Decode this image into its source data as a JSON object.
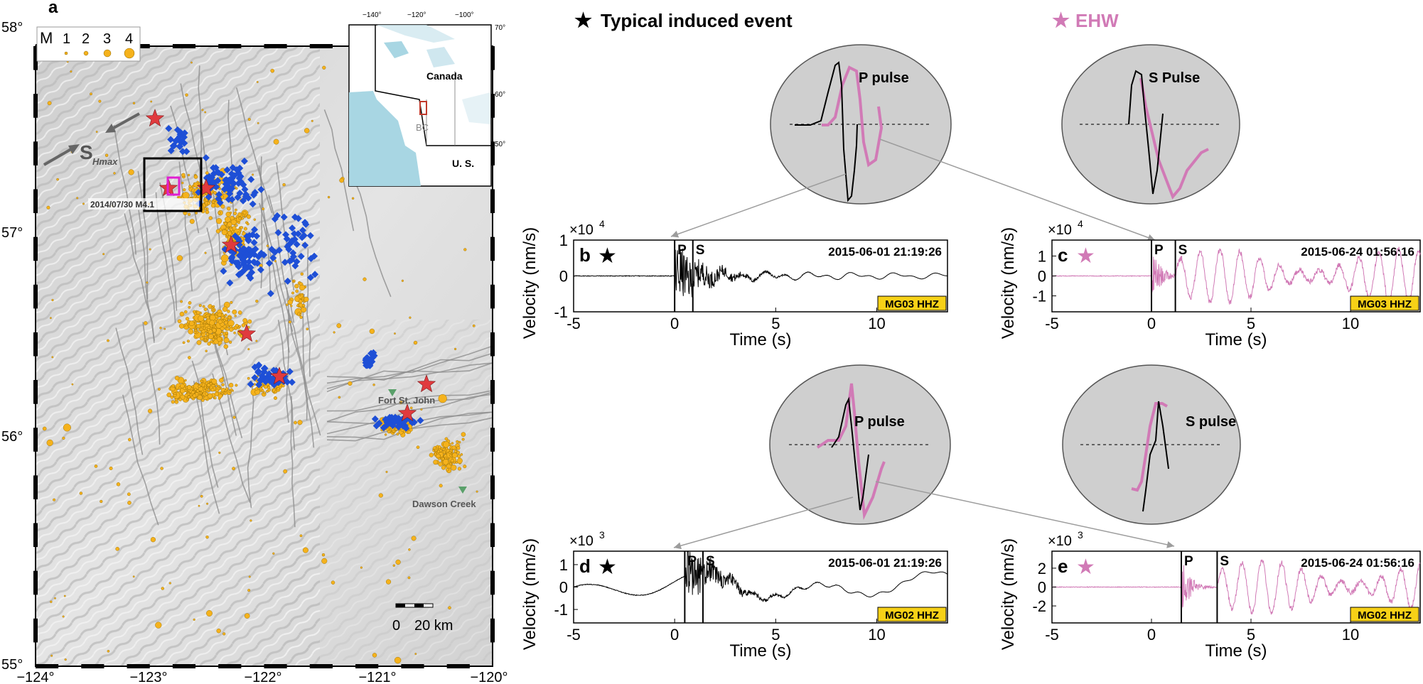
{
  "map": {
    "panel_label": "a",
    "lat_labels": [
      "58°",
      "57°",
      "56°",
      "55°"
    ],
    "lon_labels": [
      "−124°",
      "−123°",
      "−122°",
      "−121°",
      "−120°"
    ],
    "legend": {
      "title": "M",
      "values": [
        "1",
        "2",
        "3",
        "4"
      ]
    },
    "shmax_label": "S",
    "shmax_sub": "Hmax",
    "event_label": "2014/07/30 M4.1",
    "towns": [
      "Fort St. John",
      "Dawson Creek"
    ],
    "scale_bar": {
      "zero": "0",
      "dist": "20 km"
    },
    "inset": {
      "lon_labels": [
        "−140°",
        "−120°",
        "−100°"
      ],
      "lat_labels": [
        "70°",
        "60°",
        "50°"
      ],
      "country_labels": [
        "Canada",
        "U. S."
      ],
      "province_label": "BC"
    },
    "colors": {
      "seismicity": "#f5b21c",
      "cluster": "#1e4fd6",
      "star": "#e03a3e",
      "box": "#000000",
      "magenta_box": "#e01fd0",
      "water": "#a8d6e3"
    }
  },
  "legend_top": {
    "typical": {
      "star": "★",
      "label": "Typical induced event",
      "color": "#000000"
    },
    "ehw": {
      "star": "★",
      "label": "EHW",
      "color": "#d17ab6"
    }
  },
  "pulses": [
    {
      "label": "P pulse"
    },
    {
      "label": "S Pulse"
    },
    {
      "label": "P pulse"
    },
    {
      "label": "S pulse"
    }
  ],
  "chart_data": [
    {
      "type": "line",
      "panel": "b",
      "star_color": "#000000",
      "title": "2015-06-01 21:19:26",
      "station": "MG03  HHZ",
      "ylabel": "Velocity (nm/s)",
      "xlabel": "Time (s)",
      "multiplier": "×10",
      "multiplier_exp": "4",
      "xlim": [
        -5,
        13.5
      ],
      "ylim": [
        -1,
        1
      ],
      "xticks": [
        "-5",
        "0",
        "5",
        "10"
      ],
      "yticks": [
        "1",
        "0",
        "-1"
      ],
      "picks": {
        "P": 0.0,
        "S": 0.9
      },
      "series": [
        {
          "color": "#000000"
        }
      ]
    },
    {
      "type": "line",
      "panel": "c",
      "star_color": "#d17ab6",
      "title": "2015-06-24 01:56:16",
      "station": "MG03  HHZ",
      "ylabel": "Velocity (nm/s)",
      "xlabel": "Time (s)",
      "multiplier": "×10",
      "multiplier_exp": "4",
      "xlim": [
        -5,
        13.5
      ],
      "ylim": [
        -1.8,
        1.8
      ],
      "xticks": [
        "-5",
        "0",
        "5",
        "10"
      ],
      "yticks": [
        "1",
        "0",
        "-1"
      ],
      "picks": {
        "P": 0.0,
        "S": 1.2
      },
      "series": [
        {
          "color": "#d17ab6"
        }
      ]
    },
    {
      "type": "line",
      "panel": "d",
      "star_color": "#000000",
      "title": "2015-06-01 21:19:26",
      "station": "MG02  HHZ",
      "ylabel": "Velocity (nm/s)",
      "xlabel": "Time (s)",
      "multiplier": "×10",
      "multiplier_exp": "3",
      "xlim": [
        -5,
        13.5
      ],
      "ylim": [
        -1.6,
        1.6
      ],
      "xticks": [
        "-5",
        "0",
        "5",
        "10"
      ],
      "yticks": [
        "1",
        "0",
        "-1"
      ],
      "picks": {
        "P": 0.5,
        "S": 1.4
      },
      "series": [
        {
          "color": "#000000"
        }
      ]
    },
    {
      "type": "line",
      "panel": "e",
      "star_color": "#d17ab6",
      "title": "2015-06-24 01:56:16",
      "station": "MG02  HHZ",
      "ylabel": "Velocity (nm/s)",
      "xlabel": "Time (s)",
      "multiplier": "×10",
      "multiplier_exp": "3",
      "xlim": [
        -5,
        13.5
      ],
      "ylim": [
        -3.8,
        3.8
      ],
      "xticks": [
        "-5",
        "0",
        "5",
        "10"
      ],
      "yticks": [
        "2",
        "0",
        "-2"
      ],
      "picks": {
        "P": 1.5,
        "S": 3.3
      },
      "series": [
        {
          "color": "#d17ab6"
        }
      ]
    }
  ]
}
